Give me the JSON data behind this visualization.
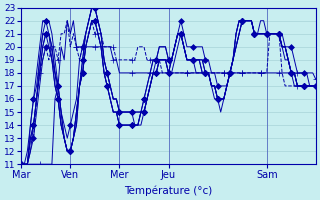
{
  "xlabel": "Température (°c)",
  "xlim": [
    0,
    96
  ],
  "ylim": [
    11,
    23
  ],
  "yticks": [
    11,
    12,
    13,
    14,
    15,
    16,
    17,
    18,
    19,
    20,
    21,
    22,
    23
  ],
  "xtick_positions": [
    0,
    16,
    32,
    48,
    80
  ],
  "xtick_labels": [
    "Mar",
    "Ven",
    "Mer",
    "Jeu",
    "Sam"
  ],
  "bg_color": "#c8eef0",
  "grid_color": "#a8d4d8",
  "line_color": "#0000aa",
  "series": [
    [
      11,
      11,
      11,
      11,
      11,
      11,
      11,
      11,
      11,
      11,
      11,
      16,
      17,
      20,
      19,
      22,
      21,
      22,
      20,
      20,
      20,
      20,
      20,
      20,
      20,
      20,
      20,
      20,
      20,
      20,
      19,
      19,
      18,
      18,
      18,
      18,
      18,
      18,
      18,
      18,
      18,
      18,
      18,
      18,
      18,
      18,
      18,
      18,
      18,
      18,
      18,
      18,
      18,
      18,
      18,
      18,
      18,
      18,
      18,
      18,
      18,
      18,
      18,
      18,
      18,
      18,
      18,
      18,
      18,
      18,
      18,
      18,
      18,
      18,
      18,
      18,
      18,
      18,
      18,
      18,
      18,
      18,
      18,
      18,
      18,
      18,
      18,
      18,
      18,
      18,
      18,
      18,
      18,
      18,
      18,
      18,
      17.5
    ],
    [
      11,
      11,
      11,
      13,
      13,
      16,
      18,
      19,
      20,
      19,
      20,
      20,
      19,
      21,
      21,
      22,
      20,
      21,
      20,
      19,
      20,
      21,
      21,
      22,
      21,
      21,
      21,
      20,
      20,
      20,
      20,
      19,
      19,
      19,
      19,
      19,
      19,
      19,
      20,
      20,
      20,
      19,
      19,
      19,
      19,
      19,
      18,
      18,
      18,
      18,
      18,
      18,
      18,
      18,
      18,
      18,
      18,
      18,
      18,
      18,
      18,
      18,
      18,
      18,
      18,
      18,
      18,
      18,
      18,
      18,
      18,
      18,
      18,
      18,
      18,
      18,
      18,
      18,
      18,
      18,
      18,
      21,
      21,
      21,
      21,
      18,
      17,
      17,
      17,
      17,
      17,
      17,
      17,
      17,
      17,
      17,
      17
    ],
    [
      11,
      11,
      11,
      12,
      14,
      16,
      19,
      21,
      22,
      22,
      21,
      19,
      17,
      15,
      14,
      13,
      14,
      15,
      16,
      19,
      20,
      21,
      22,
      23,
      23,
      22,
      21,
      19,
      18,
      17,
      16,
      16,
      15,
      15,
      15,
      15,
      15,
      14,
      14,
      14,
      15,
      16,
      17,
      18,
      19,
      19,
      19,
      19,
      19,
      19,
      20,
      21,
      22,
      21,
      20,
      20,
      20,
      20,
      20,
      20,
      19,
      19,
      18,
      18,
      17,
      17,
      17,
      17,
      18,
      19,
      21,
      22,
      22,
      22,
      22,
      22,
      21,
      21,
      22,
      22,
      21,
      21,
      21,
      21,
      21,
      21,
      20,
      20,
      20,
      19,
      18,
      18,
      18,
      18,
      17,
      17,
      17
    ],
    [
      11,
      11,
      11,
      12,
      13,
      15,
      17,
      19,
      20,
      20,
      19,
      18,
      16,
      14,
      13,
      12,
      12,
      13,
      15,
      17,
      18,
      20,
      21,
      22,
      22,
      21,
      20,
      18,
      17,
      16,
      15,
      15,
      14,
      14,
      14,
      14,
      14,
      14,
      14,
      15,
      15,
      16,
      17,
      18,
      18,
      19,
      19,
      19,
      18,
      19,
      20,
      21,
      21,
      20,
      19,
      19,
      19,
      19,
      19,
      19,
      18,
      18,
      17,
      17,
      16,
      16,
      16,
      17,
      18,
      19,
      20,
      21,
      22,
      22,
      22,
      22,
      21,
      21,
      21,
      21,
      21,
      21,
      21,
      21,
      21,
      20,
      20,
      19,
      18,
      18,
      17,
      17,
      17,
      17,
      17,
      17,
      17
    ],
    [
      11,
      11,
      11,
      13,
      14,
      16,
      18,
      20,
      21,
      21,
      20,
      18,
      17,
      15,
      13,
      12,
      12,
      13,
      14,
      17,
      18,
      20,
      21,
      22,
      22,
      21,
      20,
      18,
      17,
      16,
      15,
      15,
      14,
      14,
      14,
      14,
      14,
      14,
      14,
      15,
      15,
      16,
      17,
      18,
      18,
      19,
      19,
      19,
      18,
      19,
      20,
      21,
      21,
      20,
      19,
      19,
      19,
      19,
      19,
      19,
      18,
      18,
      17,
      17,
      16,
      16,
      16,
      17,
      18,
      19,
      20,
      21,
      22,
      22,
      22,
      22,
      21,
      21,
      21,
      21,
      21,
      21,
      21,
      21,
      21,
      20,
      20,
      19,
      18,
      18,
      17,
      17,
      17,
      17,
      17,
      17,
      17
    ],
    [
      11,
      11,
      11,
      13,
      14,
      16,
      18,
      20,
      21,
      21,
      20,
      18,
      17,
      15,
      13,
      12,
      12,
      13,
      14,
      17,
      18,
      20,
      21,
      22,
      22,
      21,
      20,
      18,
      17,
      16,
      15,
      15,
      14,
      14,
      14,
      14,
      14,
      14,
      14,
      15,
      15,
      16,
      17,
      18,
      18,
      19,
      19,
      19,
      18,
      18,
      19,
      20,
      21,
      20,
      19,
      19,
      19,
      18,
      18,
      18,
      18,
      18,
      17,
      16,
      16,
      15,
      16,
      17,
      18,
      19,
      20,
      21,
      22,
      22,
      22,
      22,
      21,
      21,
      21,
      21,
      21,
      21,
      21,
      21,
      21,
      20,
      19,
      19,
      18,
      17,
      17,
      17,
      17,
      17,
      17,
      17,
      17
    ],
    [
      11,
      11,
      11,
      14,
      16,
      17,
      19,
      21,
      21,
      20,
      19,
      17,
      16,
      14,
      13,
      12,
      12,
      13,
      15,
      17,
      19,
      21,
      22,
      23,
      23,
      22,
      21,
      19,
      18,
      17,
      16,
      16,
      15,
      15,
      15,
      15,
      15,
      15,
      15,
      15,
      16,
      17,
      18,
      19,
      19,
      20,
      20,
      20,
      19,
      19,
      20,
      21,
      21,
      20,
      19,
      19,
      19,
      19,
      19,
      18,
      18,
      18,
      17,
      17,
      16,
      16,
      16,
      17,
      18,
      19,
      21,
      22,
      22,
      22,
      22,
      22,
      21,
      21,
      21,
      21,
      21,
      21,
      21,
      21,
      21,
      20,
      20,
      19,
      18,
      18,
      17,
      17,
      17,
      17,
      17,
      17,
      17
    ],
    [
      11,
      11,
      12,
      14,
      16,
      18,
      20,
      22,
      22,
      21,
      19,
      17,
      16,
      14,
      13,
      12,
      12,
      13,
      15,
      17,
      19,
      21,
      22,
      23,
      23,
      22,
      21,
      19,
      18,
      17,
      16,
      16,
      15,
      15,
      15,
      15,
      15,
      15,
      15,
      15,
      16,
      17,
      18,
      19,
      19,
      20,
      20,
      20,
      19,
      19,
      20,
      21,
      21,
      20,
      19,
      19,
      19,
      19,
      19,
      18,
      18,
      18,
      17,
      17,
      16,
      16,
      16,
      17,
      18,
      19,
      21,
      22,
      22,
      22,
      22,
      22,
      21,
      21,
      21,
      21,
      21,
      21,
      21,
      21,
      21,
      20,
      20,
      19,
      18,
      18,
      17,
      17,
      17,
      17,
      17,
      17,
      17
    ]
  ],
  "line_styles": [
    "solid",
    "dashed",
    "solid",
    "solid",
    "solid",
    "solid",
    "solid",
    "solid"
  ],
  "markers": [
    "+",
    "+",
    "D",
    "D",
    "D",
    "D",
    "D",
    "D"
  ],
  "markersize": [
    4,
    4,
    3,
    3,
    3,
    3,
    3,
    3
  ],
  "markevery": [
    6,
    6,
    4,
    4,
    4,
    4,
    4,
    4
  ]
}
